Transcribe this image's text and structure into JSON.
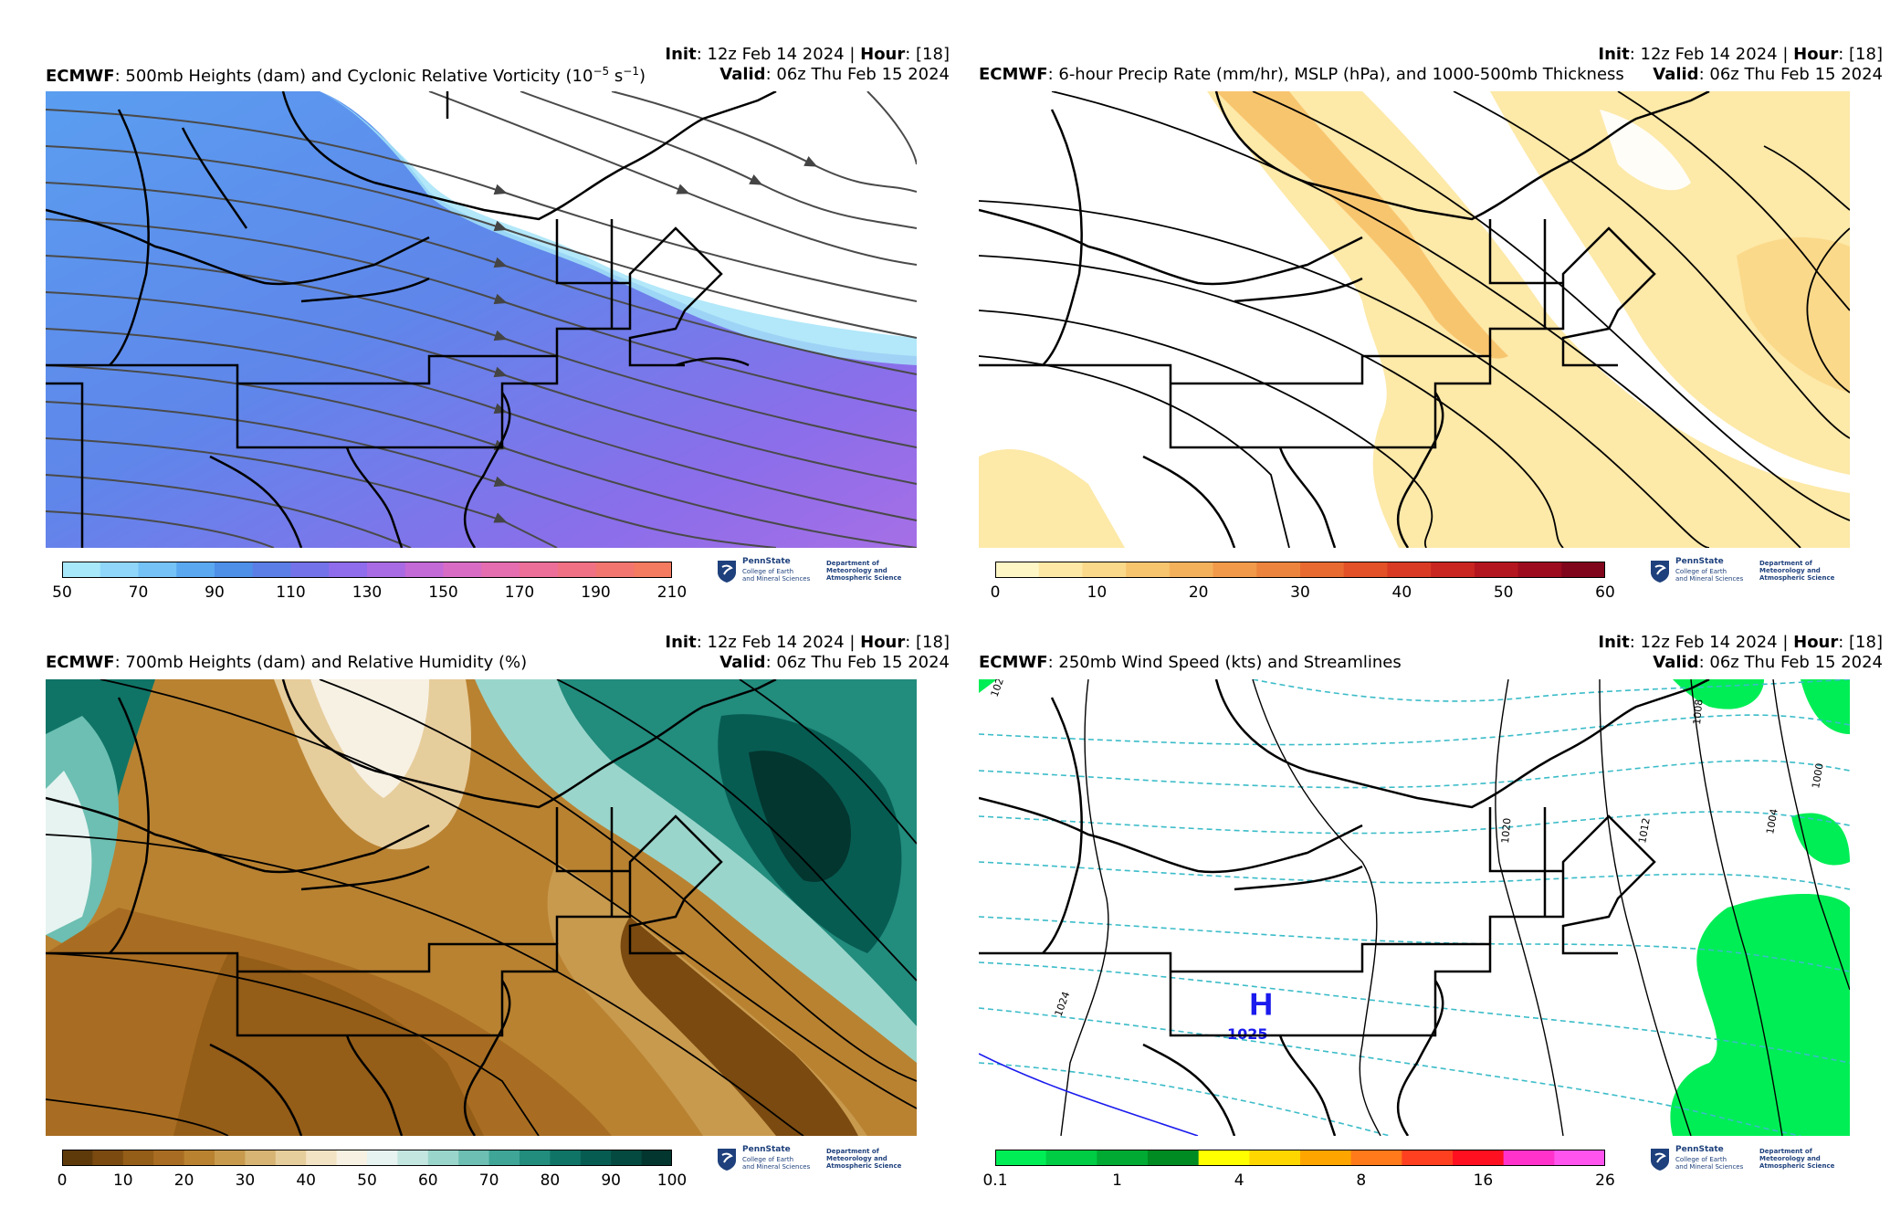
{
  "panels": [
    {
      "model": "ECMWF",
      "title_rest": ": 500mb Heights (dam) and Cyclonic Relative Vorticity (10",
      "title_sup1": "−5",
      "title_mid": " s",
      "title_sup2": "−1",
      "title_end": ")",
      "init_label": "Init",
      "init_value": ": 12z Feb 14 2024 | ",
      "hour_label": "Hour",
      "hour_value": ": [18]",
      "valid_label": "Valid",
      "valid_value": ": 06z Thu Feb 15 2024",
      "colorbar_ticks": [
        "50",
        "70",
        "90",
        "110",
        "130",
        "150",
        "170",
        "190",
        "210"
      ],
      "colorbar_colors": [
        "#a8e8fb",
        "#8fd6fa",
        "#75c2f6",
        "#5aa8ef",
        "#4e8fe8",
        "#5b7ee6",
        "#7472e8",
        "#8f6ceb",
        "#a96be3",
        "#c36ad7",
        "#d86cc4",
        "#e46eaf",
        "#ec6f99",
        "#f07184",
        "#f27570",
        "#f47a60"
      ]
    },
    {
      "model": "ECMWF",
      "title_rest": ": 6-hour Precip Rate (mm/hr), MSLP (hPa), and 1000-500mb Thickness",
      "init_label": "Init",
      "init_value": ": 12z Feb 14 2024 | ",
      "hour_label": "Hour",
      "hour_value": ": [18]",
      "valid_label": "Valid",
      "valid_value": ": 06z Thu Feb 15 2024",
      "colorbar_ticks": [
        "0",
        "10",
        "20",
        "30",
        "40",
        "50",
        "60"
      ],
      "colorbar_colors": [
        "#fff6c6",
        "#fde8a6",
        "#fbd98a",
        "#f8c56f",
        "#f4b15c",
        "#f09a4a",
        "#ec843d",
        "#e86a30",
        "#e25128",
        "#d93a24",
        "#c92622",
        "#b4161f",
        "#9c0c1e",
        "#80061c"
      ]
    },
    {
      "model": "ECMWF",
      "title_rest": ": 700mb Heights (dam) and Relative Humidity (%)",
      "init_label": "Init",
      "init_value": ": 12z Feb 14 2024 | ",
      "hour_label": "Hour",
      "hour_value": ": [18]",
      "valid_label": "Valid",
      "valid_value": ": 06z Thu Feb 15 2024",
      "colorbar_ticks": [
        "0",
        "10",
        "20",
        "30",
        "40",
        "50",
        "60",
        "70",
        "80",
        "90",
        "100"
      ],
      "colorbar_colors": [
        "#5e3a0b",
        "#7a4a10",
        "#945d18",
        "#a86d22",
        "#b98231",
        "#c89a4e",
        "#d7b474",
        "#e6cd9c",
        "#f2e3c4",
        "#f7f1e3",
        "#e6f3f0",
        "#c3e6e0",
        "#9ad5cb",
        "#6cbfb2",
        "#3fa597",
        "#228c7d",
        "#0f7466",
        "#075c52",
        "#044a40",
        "#03362f"
      ]
    },
    {
      "model": "ECMWF",
      "title_rest": ": 250mb Wind Speed (kts) and Streamlines",
      "init_label": "Init",
      "init_value": ": 12z Feb 14 2024 | ",
      "hour_label": "Hour",
      "hour_value": ": [18]",
      "valid_label": "Valid",
      "valid_value": ": 06z Thu Feb 15 2024",
      "colorbar_ticks": [
        "0.1",
        "1",
        "4",
        "8",
        "16",
        "26"
      ],
      "colorbar_colors": [
        "#00ee55",
        "#00cc44",
        "#00aa33",
        "#008a22",
        "#ffff00",
        "#ffd700",
        "#ffa500",
        "#ff7a1a",
        "#ff4020",
        "#ff1020",
        "#ff33cc",
        "#ff55ee"
      ],
      "high_label": "H",
      "high_value": "1025",
      "isobar_labels": [
        "1024",
        "1020",
        "1012",
        "1008",
        "1004",
        "1000",
        "1024"
      ]
    }
  ],
  "logo": {
    "name": "PennState",
    "sub1": "College of Earth",
    "sub2": "and Mineral Sciences",
    "dept1": "Department of",
    "dept2": "Meteorology and",
    "dept3": "Atmospheric Science"
  }
}
